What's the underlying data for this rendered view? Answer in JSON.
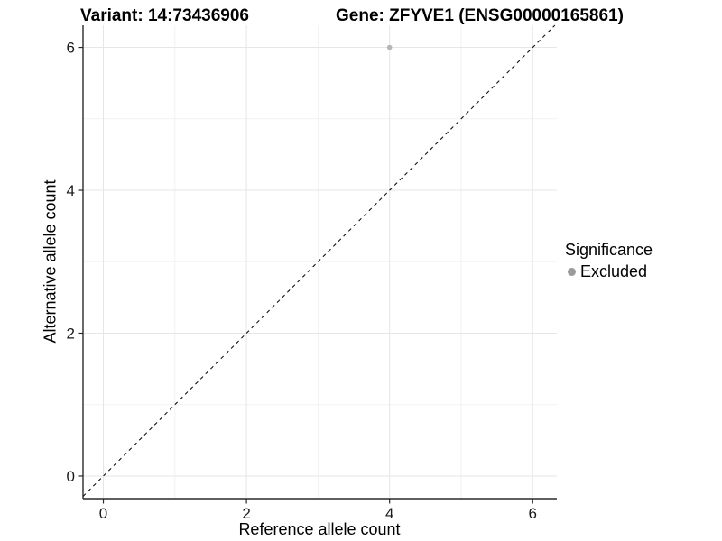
{
  "header": {
    "variant_title": "Variant: 14:73436906",
    "gene_title": "Gene: ZFYVE1 (ENSG00000165861)"
  },
  "legend": {
    "title": "Significance",
    "items": [
      {
        "label": "Excluded",
        "color": "#9b9b9b"
      }
    ]
  },
  "chart_data": {
    "type": "scatter",
    "xlabel": "Reference allele count",
    "ylabel": "Alternative allele count",
    "xlim": [
      -0.284,
      6.337
    ],
    "ylim": [
      -0.316,
      6.31
    ],
    "x_major_ticks": [
      0,
      2,
      4,
      6
    ],
    "y_major_ticks": [
      0,
      2,
      4,
      6
    ],
    "x_minor_gridlines": [
      1,
      3,
      5
    ],
    "y_minor_gridlines": [
      1,
      3,
      5
    ],
    "grid": "on",
    "legend_position": "right",
    "series": [
      {
        "name": "Excluded",
        "color": "#b5b5b5",
        "point_radius": 2.8,
        "points": [
          {
            "x": 4,
            "y": 6
          }
        ]
      }
    ],
    "reference_line": {
      "slope": 1,
      "intercept": 0,
      "style": "dashed",
      "color": "#111111"
    }
  },
  "colors": {
    "background": "#ffffff",
    "axis_line": "#2a2a2a",
    "tick_mark": "#2a2a2a",
    "tick_label": "#1a1a1a",
    "grid_major": "#e6e6e6",
    "grid_minor": "#f2f2f2",
    "text": "#000000"
  }
}
